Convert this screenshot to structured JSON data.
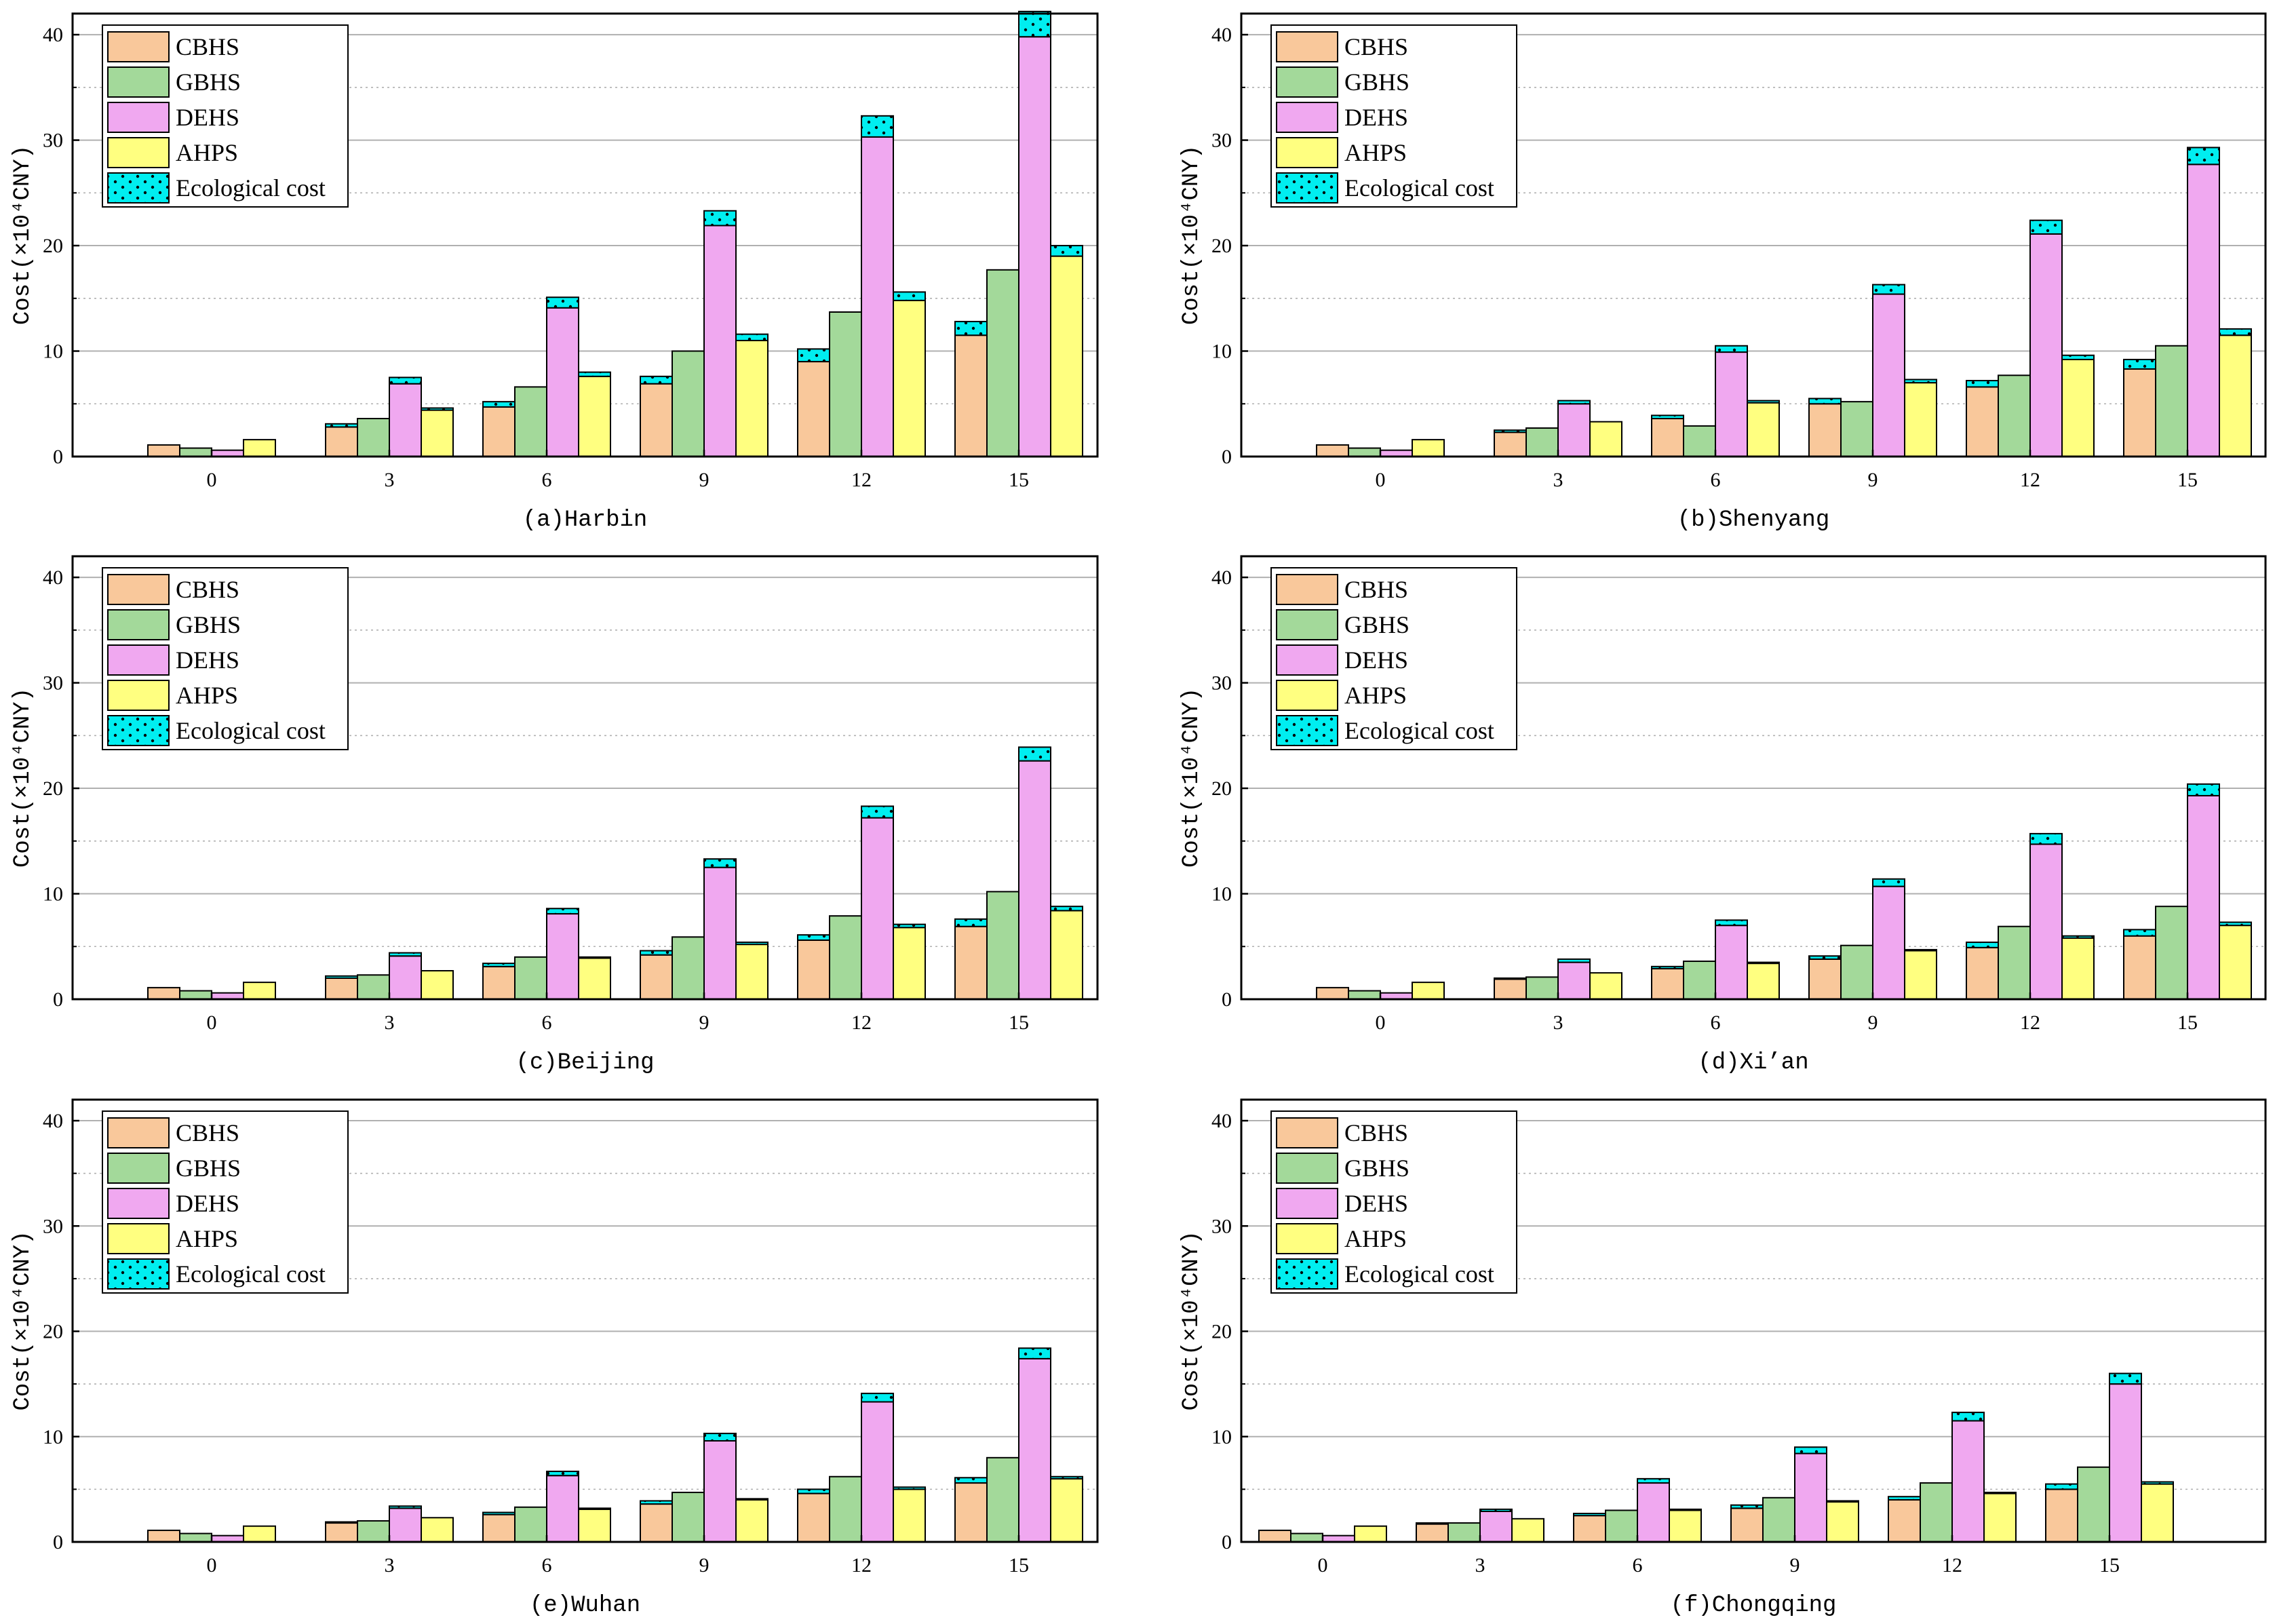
{
  "legend": {
    "items": [
      {
        "key": "cbhs",
        "label": "CBHS",
        "color": "#f9c89b"
      },
      {
        "key": "gbhs",
        "label": "GBHS",
        "color": "#a3d99a"
      },
      {
        "key": "dehs",
        "label": "DEHS",
        "color": "#f0a8f0"
      },
      {
        "key": "ahps",
        "label": "AHPS",
        "color": "#ffff80"
      },
      {
        "key": "eco",
        "label": "Ecological cost",
        "color": "#00eef0"
      }
    ]
  },
  "colors": {
    "cbhs": "#f9c89b",
    "gbhs": "#a3d99a",
    "dehs": "#f0a8f0",
    "ahps": "#ffff80",
    "eco": "#00eef0",
    "grid": "#b0b0b0",
    "frame": "#000000"
  },
  "chart_data": [
    {
      "type": "bar",
      "stacked": true,
      "title": "(a)Harbin",
      "ylabel": "Cost(×10⁴CNY)",
      "ylim": [
        0,
        42
      ],
      "yticks": [
        0,
        10,
        20,
        30,
        40
      ],
      "categories": [
        "0",
        "3",
        "6",
        "9",
        "12",
        "15"
      ],
      "series": [
        {
          "name": "CBHS",
          "base": [
            1.1,
            2.8,
            4.7,
            6.9,
            9.0,
            11.5
          ],
          "eco": [
            0,
            0.3,
            0.5,
            0.7,
            1.2,
            1.3
          ]
        },
        {
          "name": "GBHS",
          "base": [
            0.8,
            3.6,
            6.6,
            10.0,
            13.7,
            17.7
          ],
          "eco": [
            0,
            0,
            0,
            0,
            0,
            0
          ]
        },
        {
          "name": "DEHS",
          "base": [
            0.6,
            6.9,
            14.1,
            21.9,
            30.3,
            39.8
          ],
          "eco": [
            0,
            0.6,
            1.0,
            1.4,
            2.0,
            2.4
          ]
        },
        {
          "name": "AHPS",
          "base": [
            1.6,
            4.4,
            7.6,
            11.0,
            14.8,
            19.0
          ],
          "eco": [
            0,
            0.2,
            0.4,
            0.6,
            0.8,
            1.0
          ]
        }
      ]
    },
    {
      "type": "bar",
      "stacked": true,
      "title": "(b)Shenyang",
      "ylabel": "Cost(×10⁴CNY)",
      "ylim": [
        0,
        42
      ],
      "yticks": [
        0,
        10,
        20,
        30,
        40
      ],
      "categories": [
        "0",
        "3",
        "6",
        "9",
        "12",
        "15"
      ],
      "series": [
        {
          "name": "CBHS",
          "base": [
            1.1,
            2.3,
            3.6,
            5.0,
            6.6,
            8.3
          ],
          "eco": [
            0,
            0.2,
            0.3,
            0.5,
            0.6,
            0.9
          ]
        },
        {
          "name": "GBHS",
          "base": [
            0.8,
            2.7,
            2.9,
            5.2,
            7.7,
            10.5
          ],
          "eco": [
            0,
            0,
            0,
            0,
            0,
            0
          ]
        },
        {
          "name": "DEHS",
          "base": [
            0.6,
            5.0,
            9.9,
            15.4,
            21.1,
            27.7
          ],
          "eco": [
            0,
            0.3,
            0.6,
            0.9,
            1.3,
            1.6
          ]
        },
        {
          "name": "AHPS",
          "base": [
            1.6,
            3.3,
            5.1,
            7.0,
            9.2,
            11.5
          ],
          "eco": [
            0,
            0,
            0.2,
            0.3,
            0.4,
            0.6
          ]
        }
      ]
    },
    {
      "type": "bar",
      "stacked": true,
      "title": "(c)Beijing",
      "ylabel": "Cost(×10⁴CNY)",
      "ylim": [
        0,
        42
      ],
      "yticks": [
        0,
        10,
        20,
        30,
        40
      ],
      "categories": [
        "0",
        "3",
        "6",
        "9",
        "12",
        "15"
      ],
      "series": [
        {
          "name": "CBHS",
          "base": [
            1.1,
            2.0,
            3.1,
            4.2,
            5.6,
            6.9
          ],
          "eco": [
            0,
            0.2,
            0.3,
            0.4,
            0.5,
            0.7
          ]
        },
        {
          "name": "GBHS",
          "base": [
            0.8,
            2.3,
            4.0,
            5.9,
            7.9,
            10.2
          ],
          "eco": [
            0,
            0,
            0,
            0,
            0,
            0
          ]
        },
        {
          "name": "DEHS",
          "base": [
            0.6,
            4.1,
            8.1,
            12.5,
            17.2,
            22.6
          ],
          "eco": [
            0,
            0.3,
            0.5,
            0.8,
            1.1,
            1.3
          ]
        },
        {
          "name": "AHPS",
          "base": [
            1.6,
            2.7,
            3.9,
            5.2,
            6.8,
            8.4
          ],
          "eco": [
            0,
            0,
            0.1,
            0.2,
            0.3,
            0.4
          ]
        }
      ]
    },
    {
      "type": "bar",
      "stacked": true,
      "title": "(d)Xi’an",
      "ylabel": "Cost(×10⁴CNY)",
      "ylim": [
        0,
        42
      ],
      "yticks": [
        0,
        10,
        20,
        30,
        40
      ],
      "categories": [
        "0",
        "3",
        "6",
        "9",
        "12",
        "15"
      ],
      "series": [
        {
          "name": "CBHS",
          "base": [
            1.1,
            1.9,
            2.9,
            3.8,
            4.9,
            6.0
          ],
          "eco": [
            0,
            0.1,
            0.2,
            0.3,
            0.5,
            0.6
          ]
        },
        {
          "name": "GBHS",
          "base": [
            0.8,
            2.1,
            3.6,
            5.1,
            6.9,
            8.8
          ],
          "eco": [
            0,
            0,
            0,
            0,
            0,
            0
          ]
        },
        {
          "name": "DEHS",
          "base": [
            0.6,
            3.5,
            7.0,
            10.7,
            14.7,
            19.3
          ],
          "eco": [
            0,
            0.3,
            0.5,
            0.7,
            1.0,
            1.1
          ]
        },
        {
          "name": "AHPS",
          "base": [
            1.6,
            2.5,
            3.4,
            4.6,
            5.8,
            7.0
          ],
          "eco": [
            0,
            0,
            0.1,
            0.1,
            0.2,
            0.3
          ]
        }
      ]
    },
    {
      "type": "bar",
      "stacked": true,
      "title": "(e)Wuhan",
      "ylabel": "Cost(×10⁴CNY)",
      "ylim": [
        0,
        42
      ],
      "yticks": [
        0,
        10,
        20,
        30,
        40
      ],
      "categories": [
        "0",
        "3",
        "6",
        "9",
        "12",
        "15"
      ],
      "series": [
        {
          "name": "CBHS",
          "base": [
            1.1,
            1.8,
            2.6,
            3.6,
            4.6,
            5.6
          ],
          "eco": [
            0,
            0.1,
            0.2,
            0.3,
            0.4,
            0.5
          ]
        },
        {
          "name": "GBHS",
          "base": [
            0.8,
            2.0,
            3.3,
            4.7,
            6.2,
            8.0
          ],
          "eco": [
            0,
            0,
            0,
            0,
            0,
            0
          ]
        },
        {
          "name": "DEHS",
          "base": [
            0.6,
            3.2,
            6.3,
            9.6,
            13.3,
            17.4
          ],
          "eco": [
            0,
            0.2,
            0.4,
            0.7,
            0.8,
            1.0
          ]
        },
        {
          "name": "AHPS",
          "base": [
            1.5,
            2.3,
            3.1,
            4.0,
            5.0,
            6.0
          ],
          "eco": [
            0,
            0,
            0.1,
            0.1,
            0.2,
            0.2
          ]
        }
      ]
    },
    {
      "type": "bar",
      "stacked": true,
      "title": "(f)Chongqing",
      "ylabel": "Cost(×10⁴CNY)",
      "ylim": [
        0,
        42
      ],
      "yticks": [
        0,
        10,
        20,
        30,
        40
      ],
      "categories": [
        "0",
        "3",
        "6",
        "9",
        "12",
        "15"
      ],
      "series": [
        {
          "name": "CBHS",
          "base": [
            1.1,
            1.7,
            2.5,
            3.2,
            4.0,
            5.0
          ],
          "eco": [
            0,
            0.1,
            0.2,
            0.3,
            0.3,
            0.5
          ]
        },
        {
          "name": "GBHS",
          "base": [
            0.8,
            1.8,
            3.0,
            4.2,
            5.6,
            7.1
          ],
          "eco": [
            0,
            0,
            0,
            0,
            0,
            0
          ]
        },
        {
          "name": "DEHS",
          "base": [
            0.6,
            2.9,
            5.6,
            8.4,
            11.5,
            15.0
          ],
          "eco": [
            0,
            0.2,
            0.4,
            0.6,
            0.8,
            1.0
          ]
        },
        {
          "name": "AHPS",
          "base": [
            1.5,
            2.2,
            3.0,
            3.8,
            4.6,
            5.5
          ],
          "eco": [
            0,
            0,
            0.1,
            0.1,
            0.1,
            0.2
          ]
        }
      ]
    }
  ]
}
